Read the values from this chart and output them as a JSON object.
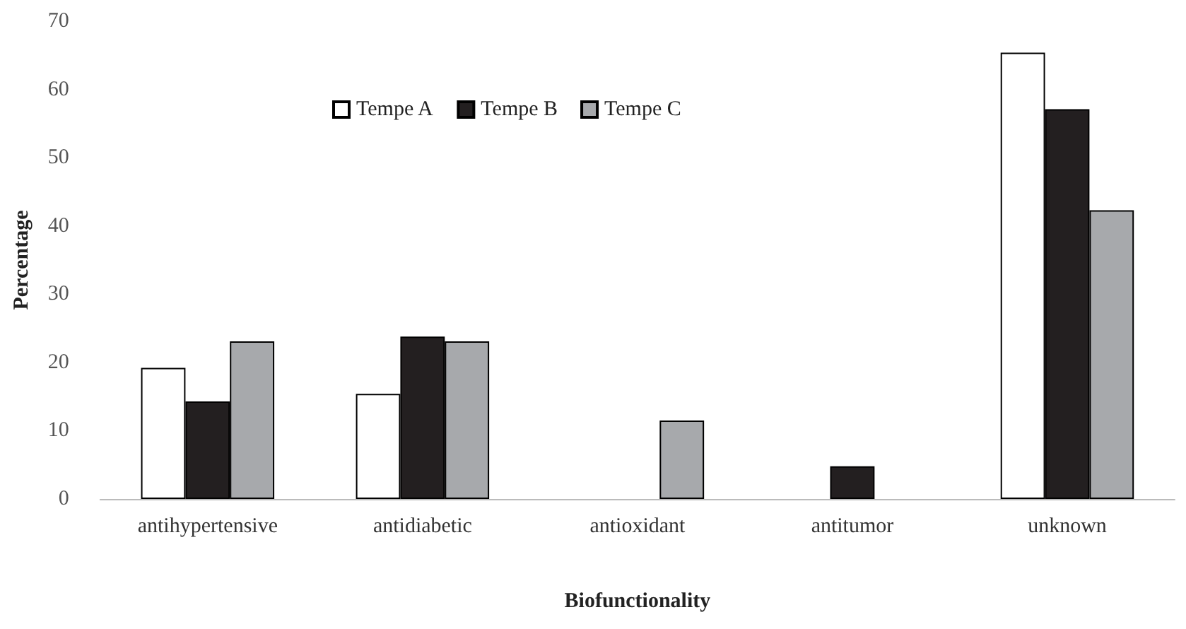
{
  "chart_data": {
    "type": "bar",
    "xlabel": "Biofunctionality",
    "ylabel": "Percentage",
    "categories": [
      "antihypertensive",
      "antidiabetic",
      "antioxidant",
      "antitumor",
      "unknown"
    ],
    "series": [
      {
        "name": "Tempe A",
        "color": "#ffffff",
        "values": [
          19.2,
          15.4,
          0,
          0,
          65.4
        ]
      },
      {
        "name": "Tempe B",
        "color": "#231f20",
        "values": [
          14.3,
          23.8,
          0,
          4.8,
          57.1
        ]
      },
      {
        "name": "Tempe C",
        "color": "#a7a9ac",
        "values": [
          23.1,
          23.1,
          11.5,
          0,
          42.3
        ]
      }
    ],
    "ylim": [
      0,
      70
    ],
    "yticks": [
      0,
      10,
      20,
      30,
      40,
      50,
      60,
      70
    ],
    "grid": false,
    "legend": "top"
  }
}
